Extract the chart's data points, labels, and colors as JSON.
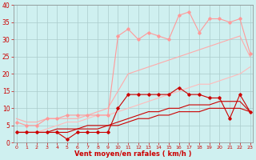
{
  "x": [
    0,
    1,
    2,
    3,
    4,
    5,
    6,
    7,
    8,
    9,
    10,
    11,
    12,
    13,
    14,
    15,
    16,
    17,
    18,
    19,
    20,
    21,
    22,
    23
  ],
  "series": [
    {
      "name": "rafales_pink_marker",
      "color": "#ff9999",
      "linewidth": 0.8,
      "marker": "D",
      "markersize": 1.8,
      "y": [
        6,
        5,
        5,
        7,
        7,
        8,
        8,
        8,
        8,
        8,
        31,
        33,
        30,
        32,
        31,
        30,
        37,
        38,
        32,
        36,
        36,
        35,
        36,
        26
      ]
    },
    {
      "name": "rafales_pink_line",
      "color": "#ffaaaa",
      "linewidth": 0.8,
      "marker": null,
      "y": [
        7,
        6,
        6,
        7,
        7,
        7,
        7,
        8,
        9,
        10,
        15,
        20,
        21,
        22,
        23,
        24,
        25,
        26,
        27,
        28,
        29,
        30,
        31,
        25
      ]
    },
    {
      "name": "moyen_pink_line",
      "color": "#ffbbbb",
      "linewidth": 0.8,
      "marker": null,
      "y": [
        3,
        3,
        3,
        4,
        5,
        6,
        6,
        7,
        8,
        8,
        9,
        10,
        11,
        12,
        13,
        14,
        15,
        16,
        17,
        17,
        18,
        19,
        20,
        22
      ]
    },
    {
      "name": "moyen_red_line2",
      "color": "#cc0000",
      "linewidth": 0.8,
      "marker": null,
      "y": [
        3,
        3,
        3,
        3,
        4,
        4,
        4,
        5,
        5,
        5,
        6,
        7,
        8,
        9,
        9,
        10,
        10,
        11,
        11,
        11,
        12,
        12,
        12,
        9
      ]
    },
    {
      "name": "moyen_red_line3",
      "color": "#cc0000",
      "linewidth": 0.8,
      "marker": null,
      "y": [
        3,
        3,
        3,
        3,
        3,
        3,
        4,
        4,
        4,
        5,
        5,
        6,
        7,
        7,
        8,
        8,
        9,
        9,
        9,
        10,
        10,
        10,
        10,
        9
      ]
    },
    {
      "name": "moyen_red_marker",
      "color": "#cc0000",
      "linewidth": 0.8,
      "marker": "D",
      "markersize": 1.8,
      "y": [
        3,
        3,
        3,
        3,
        3,
        1,
        3,
        3,
        3,
        3,
        10,
        14,
        14,
        14,
        14,
        14,
        16,
        14,
        14,
        13,
        13,
        7,
        14,
        9
      ]
    }
  ],
  "ylim": [
    0,
    40
  ],
  "xlim": [
    -0.3,
    23.3
  ],
  "yticks": [
    0,
    5,
    10,
    15,
    20,
    25,
    30,
    35,
    40
  ],
  "xtick_labels": [
    "0",
    "1",
    "2",
    "3",
    "4",
    "5",
    "6",
    "7",
    "8",
    "9",
    "10",
    "11",
    "12",
    "13",
    "14",
    "15",
    "16",
    "17",
    "18",
    "19",
    "20",
    "21",
    "22",
    "23"
  ],
  "xlabel": "Vent moyen/en rafales ( km/h )",
  "background_color": "#cff0f0",
  "grid_color": "#aacccc",
  "arrow_color": "#cc0000",
  "xlabel_color": "#cc0000",
  "tick_color": "#cc0000"
}
